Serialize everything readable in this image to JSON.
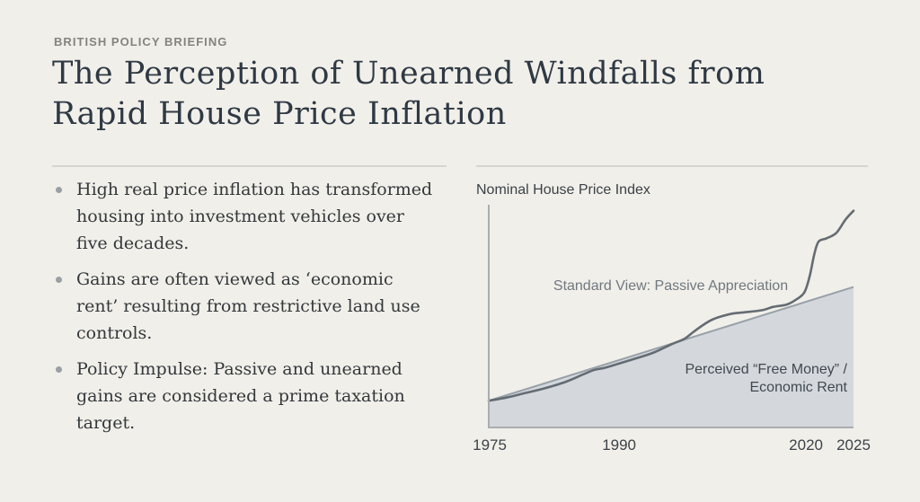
{
  "page": {
    "background": "#f1efe9"
  },
  "header": {
    "kicker": "BRITISH POLICY BRIEFING",
    "title": "The Perception of Unearned Windfalls from\nRapid House Price Inflation"
  },
  "bullets": [
    {
      "text": "High real price inflation has transformed\nhousing into investment vehicles over\nfive decades."
    },
    {
      "text": "Gains are often viewed as ‘economic\nrent’ resulting from restrictive land use\ncontrols."
    },
    {
      "text": "Policy Impulse: Passive and unearned\ngains are considered a prime taxation\ntarget."
    }
  ],
  "chart": {
    "title": "Nominal House Price Index",
    "annotation_standard": "Standard View: Passive Appreciation",
    "annotation_perceived": "Perceived “Free Money” /\nEconomic Rent"
  },
  "chart_data": {
    "type": "area",
    "title": "Nominal House Price Index",
    "xlabel": "",
    "ylabel": "",
    "grid": false,
    "x_range": [
      1975,
      2025
    ],
    "y_range": [
      0,
      100
    ],
    "axis_color": "#a9adb0",
    "x_ticks": [
      {
        "label": "1975",
        "pos": 0.005
      },
      {
        "label": "1990",
        "pos": 0.359
      },
      {
        "label": "2020",
        "pos": 0.87
      },
      {
        "label": "2025",
        "pos": 1.0
      }
    ],
    "series": [
      {
        "name": "Standard View: Passive Appreciation",
        "type": "area",
        "fill": "#d4d8dd",
        "edge": "#98a1a9",
        "points": [
          [
            0,
            12.5
          ],
          [
            1,
            64
          ]
        ]
      },
      {
        "name": "Nominal House Price Index",
        "type": "line",
        "color": "#646c73",
        "points": [
          [
            0,
            12.5
          ],
          [
            0.05,
            14
          ],
          [
            0.1,
            16
          ],
          [
            0.15,
            18
          ],
          [
            0.21,
            21
          ],
          [
            0.26,
            24.5
          ],
          [
            0.29,
            26.5
          ],
          [
            0.32,
            27.5
          ],
          [
            0.37,
            30
          ],
          [
            0.42,
            32.5
          ],
          [
            0.455,
            34.5
          ],
          [
            0.5,
            38
          ],
          [
            0.536,
            40.5
          ],
          [
            0.56,
            43.5
          ],
          [
            0.585,
            46.5
          ],
          [
            0.61,
            49
          ],
          [
            0.634,
            50.5
          ],
          [
            0.67,
            52
          ],
          [
            0.7,
            52.5
          ],
          [
            0.75,
            53.5
          ],
          [
            0.78,
            55
          ],
          [
            0.816,
            56
          ],
          [
            0.84,
            58
          ],
          [
            0.865,
            61.5
          ],
          [
            0.88,
            69
          ],
          [
            0.892,
            78.5
          ],
          [
            0.904,
            84.5
          ],
          [
            0.926,
            86
          ],
          [
            0.953,
            88.5
          ],
          [
            0.978,
            94.5
          ],
          [
            1,
            98.5
          ]
        ]
      }
    ],
    "annotations": [
      {
        "text": "Standard View: Passive Appreciation",
        "position": "upper-center"
      },
      {
        "text": "Perceived “Free Money” /\nEconomic Rent",
        "position": "lower-right"
      }
    ]
  }
}
